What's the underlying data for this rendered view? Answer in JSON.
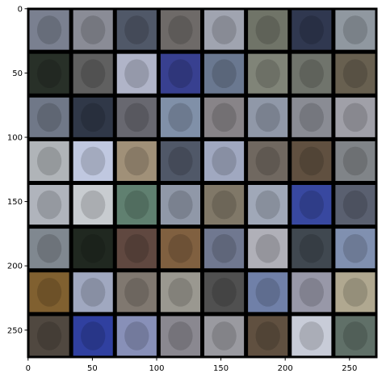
{
  "chart_data": {
    "type": "image",
    "xlim": [
      -0.5,
      271.5
    ],
    "ylim": [
      271.5,
      -0.5
    ],
    "xticks": [
      0,
      50,
      100,
      150,
      200,
      250
    ],
    "yticks": [
      0,
      50,
      100,
      150,
      200,
      250
    ]
  }
}
